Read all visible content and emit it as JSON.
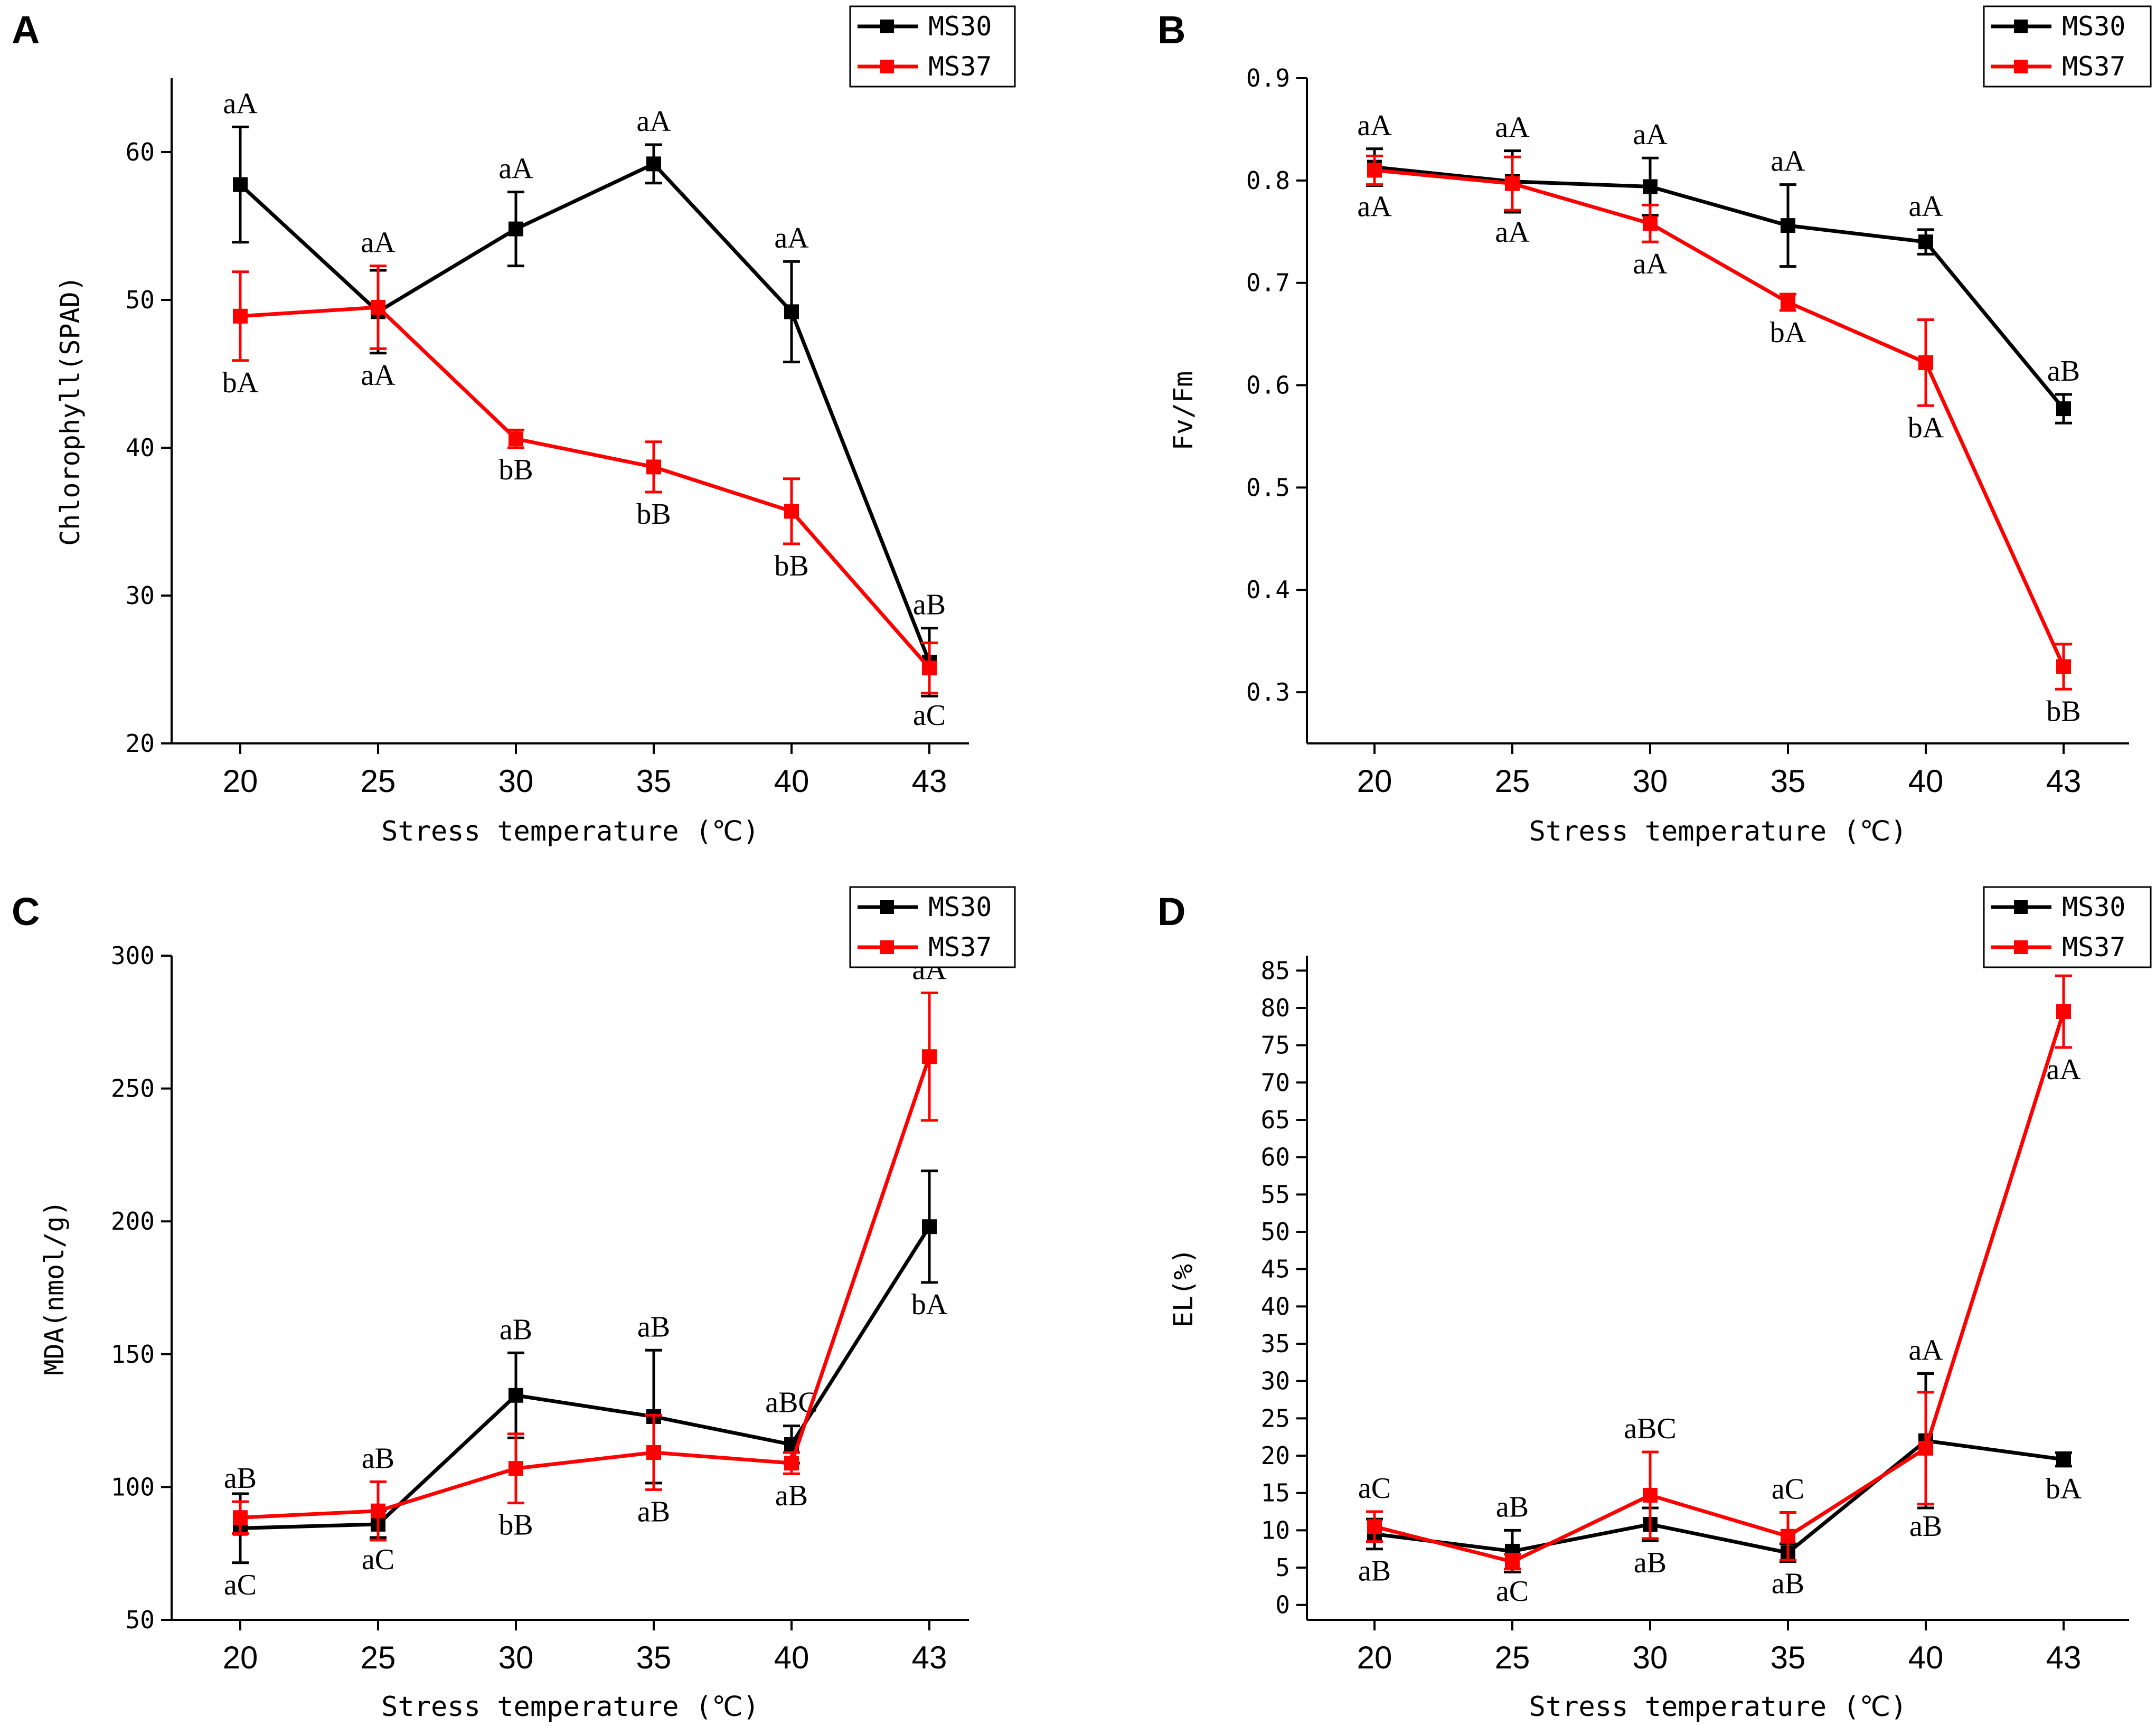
{
  "colors": {
    "MS30": "#000000",
    "MS37": "#ff0000"
  },
  "chart_data": [
    {
      "panel": "A",
      "type": "line",
      "categories": [
        "20",
        "25",
        "30",
        "35",
        "40",
        "43"
      ],
      "xlabel": "Stress temperature (℃)",
      "ylabel": "Chlorophyll(SPAD)",
      "ylim": [
        20,
        65
      ],
      "yticks": [
        20,
        30,
        40,
        50,
        60
      ],
      "ytick_labels": [
        "20",
        "30",
        "40",
        "50",
        "60"
      ],
      "legend": [
        "MS30",
        "MS37"
      ],
      "legend_position": "top-right",
      "series": [
        {
          "name": "MS30",
          "values": [
            57.8,
            49.2,
            54.8,
            59.2,
            49.2,
            25.5
          ],
          "errors": [
            3.9,
            2.8,
            2.5,
            1.3,
            3.4,
            2.3
          ],
          "labels": [
            "aA",
            "aA",
            "aA",
            "aA",
            "aA",
            "aB"
          ],
          "label_pos": [
            "above",
            "below",
            "above",
            "above",
            "above",
            "above"
          ]
        },
        {
          "name": "MS37",
          "values": [
            48.9,
            49.5,
            40.6,
            38.7,
            35.7,
            25.1
          ],
          "errors": [
            3.0,
            2.8,
            0.6,
            1.7,
            2.2,
            1.7
          ],
          "labels": [
            "bA",
            "aA",
            "bB",
            "bB",
            "bB",
            "aC"
          ],
          "label_pos": [
            "below",
            "above",
            "below",
            "below",
            "below",
            "below"
          ]
        }
      ]
    },
    {
      "panel": "B",
      "type": "line",
      "categories": [
        "20",
        "25",
        "30",
        "35",
        "40",
        "43"
      ],
      "xlabel": "Stress temperature (℃)",
      "ylabel": "Fv/Fm",
      "ylim": [
        0.25,
        0.9
      ],
      "yticks": [
        0.3,
        0.4,
        0.5,
        0.6,
        0.7,
        0.8,
        0.9
      ],
      "ytick_labels": [
        "0.3",
        "0.4",
        "0.5",
        "0.6",
        "0.7",
        "0.8",
        "0.9"
      ],
      "legend": [
        "MS30",
        "MS37"
      ],
      "legend_position": "top-right",
      "series": [
        {
          "name": "MS30",
          "values": [
            0.813,
            0.799,
            0.794,
            0.756,
            0.74,
            0.577
          ],
          "errors": [
            0.018,
            0.03,
            0.028,
            0.04,
            0.012,
            0.014
          ],
          "labels": [
            "aA",
            "aA",
            "aA",
            "aA",
            "aA",
            "aB"
          ],
          "label_pos": [
            "above",
            "above",
            "above",
            "above",
            "above",
            "above"
          ]
        },
        {
          "name": "MS37",
          "values": [
            0.81,
            0.797,
            0.758,
            0.681,
            0.622,
            0.325
          ],
          "errors": [
            0.014,
            0.026,
            0.018,
            0.008,
            0.042,
            0.022
          ],
          "labels": [
            "aA",
            "aA",
            "aA",
            "bA",
            "bA",
            "bB"
          ],
          "label_pos": [
            "below",
            "below",
            "below",
            "below",
            "below",
            "below"
          ]
        }
      ]
    },
    {
      "panel": "C",
      "type": "line",
      "categories": [
        "20",
        "25",
        "30",
        "35",
        "40",
        "43"
      ],
      "xlabel": "Stress temperature (℃)",
      "ylabel": "MDA(nmol/g)",
      "ylim": [
        50,
        300
      ],
      "yticks": [
        50,
        100,
        150,
        200,
        250,
        300
      ],
      "ytick_labels": [
        "50",
        "100",
        "150",
        "200",
        "250",
        "300"
      ],
      "legend": [
        "MS30",
        "MS37"
      ],
      "legend_position": "top-right",
      "series": [
        {
          "name": "MS30",
          "values": [
            84.5,
            86,
            134.5,
            126.5,
            116,
            198
          ],
          "errors": [
            13,
            5,
            16,
            25,
            7,
            21
          ],
          "labels": [
            "aC",
            "aC",
            "aB",
            "aB",
            "aBC",
            "bA"
          ],
          "label_pos": [
            "below",
            "below",
            "above",
            "above",
            "above",
            "below"
          ]
        },
        {
          "name": "MS37",
          "values": [
            88.5,
            91,
            107,
            113,
            109,
            262
          ],
          "errors": [
            6,
            11,
            13,
            14,
            4,
            24
          ],
          "labels": [
            "aB",
            "aB",
            "bB",
            "aB",
            "aB",
            "aA"
          ],
          "label_pos": [
            "above",
            "above",
            "below",
            "below",
            "below",
            "above"
          ]
        }
      ]
    },
    {
      "panel": "D",
      "type": "line",
      "categories": [
        "20",
        "25",
        "30",
        "35",
        "40",
        "43"
      ],
      "xlabel": "Stress temperature (℃)",
      "ylabel": "EL(%)",
      "ylim": [
        -2,
        87
      ],
      "yticks": [
        0,
        5,
        10,
        15,
        20,
        25,
        30,
        35,
        40,
        45,
        50,
        55,
        60,
        65,
        70,
        75,
        80,
        85
      ],
      "ytick_labels": [
        "0",
        "5",
        "10",
        "15",
        "20",
        "25",
        "30",
        "35",
        "40",
        "45",
        "50",
        "55",
        "60",
        "65",
        "70",
        "75",
        "80",
        "85"
      ],
      "legend": [
        "MS30",
        "MS37"
      ],
      "legend_position": "top-right",
      "series": [
        {
          "name": "MS30",
          "values": [
            9.5,
            7.2,
            10.8,
            7.0,
            22.0,
            19.5
          ],
          "errors": [
            2.0,
            2.8,
            2.2,
            1.2,
            9.0,
            0.9
          ],
          "labels": [
            "aB",
            "aB",
            "aB",
            "aB",
            "aA",
            "bA"
          ],
          "label_pos": [
            "below",
            "above",
            "below",
            "below",
            "above",
            "below"
          ]
        },
        {
          "name": "MS37",
          "values": [
            10.5,
            5.8,
            14.7,
            9.2,
            21.0,
            79.5
          ],
          "errors": [
            2.0,
            1.0,
            5.8,
            3.2,
            7.5,
            4.8
          ],
          "labels": [
            "aC",
            "aC",
            "aBC",
            "aC",
            "aB",
            "aA"
          ],
          "label_pos": [
            "above",
            "below",
            "above",
            "above",
            "below",
            "below"
          ]
        }
      ]
    }
  ]
}
